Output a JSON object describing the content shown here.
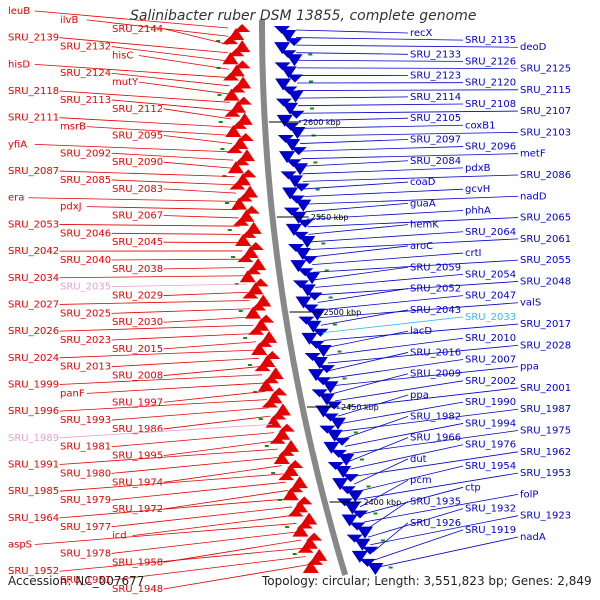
{
  "title": "Salinibacter ruber DSM 13855, complete genome",
  "footer": {
    "accession": "Accession: NC_007677",
    "summary": "Topology: circular; Length: 3,551,823 bp; Genes: 2,849"
  },
  "colors": {
    "left_strand": "#e60000",
    "right_strand": "#0000cc",
    "highlight_left": "#e8a0d0",
    "highlight_right": "#33bbee",
    "backbone": "#888888",
    "tick_marker": "#1a8a1a"
  },
  "kbp_ticks": [
    "2600 kbp",
    "2550 kbp",
    "2500 kbp",
    "2450 kbp",
    "2400 kbp"
  ],
  "left_labels": [
    "leuB",
    "ilvB",
    "SRU_2144",
    "SRU_2139",
    "SRU_2132",
    "hisC",
    "hisD",
    "SRU_2124",
    "mutY",
    "SRU_2118",
    "SRU_2113",
    "SRU_2112",
    "SRU_2111",
    "msrB",
    "SRU_2095",
    "yfiA",
    "SRU_2092",
    "SRU_2090",
    "SRU_2087",
    "SRU_2085",
    "SRU_2083",
    "era",
    "pdxJ",
    "SRU_2067",
    "SRU_2053",
    "SRU_2046",
    "SRU_2045",
    "SRU_2042",
    "SRU_2040",
    "SRU_2038",
    "SRU_2034",
    "SRU_2035",
    "SRU_2029",
    "SRU_2027",
    "SRU_2025",
    "SRU_2030",
    "SRU_2026",
    "SRU_2023",
    "SRU_2015",
    "SRU_2024",
    "SRU_2013",
    "SRU_2008",
    "SRU_1999",
    "panF",
    "SRU_1997",
    "SRU_1996",
    "SRU_1993",
    "SRU_1986",
    "SRU_1989",
    "SRU_1981",
    "SRU_1995",
    "SRU_1991",
    "SRU_1980",
    "SRU_1974",
    "SRU_1985",
    "SRU_1979",
    "SRU_1972",
    "SRU_1964",
    "SRU_1977",
    "icd",
    "aspS",
    "SRU_1978",
    "SRU_1958",
    "SRU_1952",
    "SRU_1951",
    "SRU_1948"
  ],
  "right_labels": [
    "recX",
    "SRU_2135",
    "deoD",
    "SRU_2133",
    "SRU_2126",
    "SRU_2125",
    "SRU_2123",
    "SRU_2120",
    "SRU_2115",
    "SRU_2114",
    "SRU_2108",
    "SRU_2107",
    "SRU_2105",
    "coxB1",
    "SRU_2103",
    "SRU_2097",
    "SRU_2096",
    "metF",
    "SRU_2084",
    "pdxB",
    "SRU_2086",
    "coaD",
    "gcvH",
    "nadD",
    "guaA",
    "phhA",
    "SRU_2065",
    "hemK",
    "SRU_2064",
    "SRU_2061",
    "aroC",
    "crtI",
    "SRU_2055",
    "SRU_2059",
    "SRU_2054",
    "SRU_2048",
    "SRU_2052",
    "SRU_2047",
    "valS",
    "SRU_2043",
    "SRU_2033",
    "SRU_2017",
    "lacD",
    "SRU_2010",
    "SRU_2028",
    "SRU_2016",
    "SRU_2007",
    "ppa",
    "SRU_2009",
    "SRU_2002",
    "SRU_2001",
    "ppa",
    "SRU_1990",
    "SRU_1987",
    "SRU_1982",
    "SRU_1994",
    "SRU_1975",
    "SRU_1966",
    "SRU_1976",
    "SRU_1962",
    "dut",
    "SRU_1954",
    "SRU_1953",
    "pcm",
    "ctp",
    "folP",
    "SRU_1935",
    "SRU_1932",
    "SRU_1923",
    "SRU_1926",
    "SRU_1919",
    "nadA"
  ]
}
